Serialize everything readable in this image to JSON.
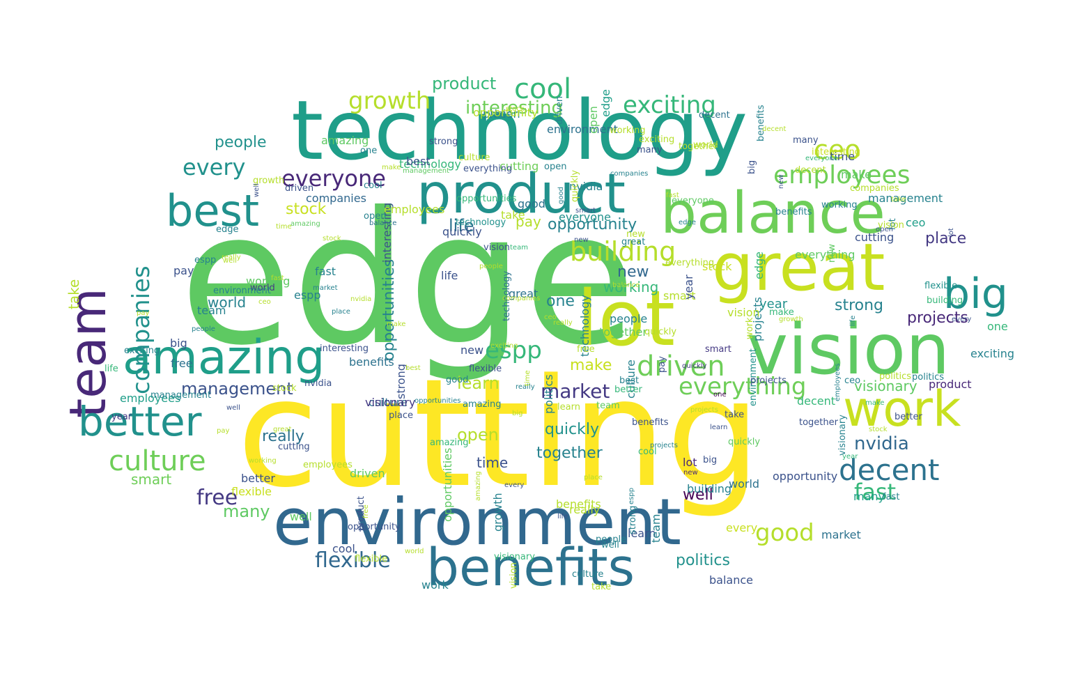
{
  "palette": {
    "yellow": "#fde725",
    "yellow_green": "#c8e020",
    "light_green": "#b5de2b",
    "green": "#6ece58",
    "mid_green": "#5ec962",
    "sea_green": "#35b779",
    "teal": "#1f9e89",
    "teal_dark": "#21918c",
    "blue_teal": "#26828e",
    "steel_blue": "#2c728e",
    "blue": "#31688e",
    "indigo": "#3b528b",
    "purple": "#443983",
    "dark_purple": "#482878",
    "deep_purple": "#440154",
    "background": "#ffffff"
  },
  "words": [
    {
      "text": "edge",
      "color": "#5ec962"
    },
    {
      "text": "cutting",
      "color": "#fde725"
    },
    {
      "text": "technology",
      "color": "#1f9e89"
    },
    {
      "text": "environment",
      "color": "#31688e"
    },
    {
      "text": "product",
      "color": "#21918c"
    },
    {
      "text": "great",
      "color": "#c8e020"
    },
    {
      "text": "vision",
      "color": "#5ec962"
    },
    {
      "text": "balance",
      "color": "#6ece58"
    },
    {
      "text": "lot",
      "color": "#c8e020"
    },
    {
      "text": "benefits",
      "color": "#2c728e"
    },
    {
      "text": "team",
      "color": "#482878"
    },
    {
      "text": "amazing",
      "color": "#1f9e89"
    },
    {
      "text": "work",
      "color": "#c8e020"
    },
    {
      "text": "better",
      "color": "#21918c"
    },
    {
      "text": "best",
      "color": "#21918c"
    },
    {
      "text": "big",
      "color": "#21918c"
    },
    {
      "text": "culture",
      "color": "#6ece58"
    },
    {
      "text": "decent",
      "color": "#2c728e"
    },
    {
      "text": "companies",
      "color": "#21918c"
    },
    {
      "text": "employees",
      "color": "#6ece58"
    },
    {
      "text": "driven",
      "color": "#6ece58"
    },
    {
      "text": "building",
      "color": "#b5de2b"
    },
    {
      "text": "everyone",
      "color": "#482878"
    },
    {
      "text": "everything",
      "color": "#6ece58"
    },
    {
      "text": "growth",
      "color": "#b5de2b"
    },
    {
      "text": "cool",
      "color": "#35b779"
    },
    {
      "text": "exciting",
      "color": "#35b779"
    },
    {
      "text": "espp",
      "color": "#35b779"
    },
    {
      "text": "fast",
      "color": "#35b779"
    },
    {
      "text": "good",
      "color": "#b5de2b"
    },
    {
      "text": "ceo",
      "color": "#b5de2b"
    },
    {
      "text": "every",
      "color": "#21918c"
    },
    {
      "text": "free",
      "color": "#443983"
    },
    {
      "text": "flexible",
      "color": "#31688e"
    },
    {
      "text": "management",
      "color": "#3b528b"
    },
    {
      "text": "market",
      "color": "#443983"
    },
    {
      "text": "interesting",
      "color": "#6ece58"
    },
    {
      "text": "opportunities",
      "color": "#26828e"
    },
    {
      "text": "nvidia",
      "color": "#31688e"
    },
    {
      "text": "politics",
      "color": "#21918c"
    },
    {
      "text": "product",
      "color": "#35b779"
    },
    {
      "text": "opportunity",
      "color": "#26828e"
    },
    {
      "text": "quickly",
      "color": "#21918c"
    },
    {
      "text": "learn",
      "color": "#b5de2b"
    },
    {
      "text": "together",
      "color": "#26828e"
    },
    {
      "text": "open",
      "color": "#b5de2b"
    },
    {
      "text": "visionary",
      "color": "#5ec962"
    },
    {
      "text": "projects",
      "color": "#482878"
    },
    {
      "text": "strong",
      "color": "#26828e"
    },
    {
      "text": "life",
      "color": "#2c728e"
    },
    {
      "text": "many",
      "color": "#5ec962"
    },
    {
      "text": "stock",
      "color": "#c8e020"
    },
    {
      "text": "people",
      "color": "#21918c"
    },
    {
      "text": "place",
      "color": "#443983"
    },
    {
      "text": "new",
      "color": "#31688e"
    },
    {
      "text": "year",
      "color": "#21918c"
    },
    {
      "text": "working",
      "color": "#35b779"
    },
    {
      "text": "really",
      "color": "#2c728e"
    },
    {
      "text": "smart",
      "color": "#6ece58"
    },
    {
      "text": "time",
      "color": "#3b528b"
    },
    {
      "text": "make",
      "color": "#c8e020"
    },
    {
      "text": "world",
      "color": "#26828e"
    },
    {
      "text": "well",
      "color": "#440154"
    },
    {
      "text": "pay",
      "color": "#b5de2b"
    },
    {
      "text": "take",
      "color": "#b5de2b"
    },
    {
      "text": "one",
      "color": "#26828e"
    },
    {
      "text": "edge",
      "color": "#35b779"
    },
    {
      "text": "cutting",
      "color": "#6ece58"
    },
    {
      "text": "environment",
      "color": "#2c728e"
    },
    {
      "text": "technology",
      "color": "#35b779"
    },
    {
      "text": "benefits",
      "color": "#b5de2b"
    },
    {
      "text": "great",
      "color": "#2c728e"
    },
    {
      "text": "employees",
      "color": "#1f9e89"
    },
    {
      "text": "opportunity",
      "color": "#3b528b"
    },
    {
      "text": "best",
      "color": "#3b528b"
    },
    {
      "text": "ceo",
      "color": "#1f9e89"
    },
    {
      "text": "cool",
      "color": "#3b528b"
    },
    {
      "text": "lot",
      "color": "#482878"
    },
    {
      "text": "work",
      "color": "#26828e"
    },
    {
      "text": "vision",
      "color": "#26828e"
    },
    {
      "text": "growth",
      "color": "#26828e"
    },
    {
      "text": "culture",
      "color": "#2c728e"
    },
    {
      "text": "decent",
      "color": "#35b779"
    },
    {
      "text": "amazing",
      "color": "#5ec962"
    },
    {
      "text": "building",
      "color": "#26828e"
    },
    {
      "text": "driven",
      "color": "#5ec962"
    },
    {
      "text": "team",
      "color": "#26828e"
    },
    {
      "text": "everything",
      "color": "#5ec962"
    },
    {
      "text": "companies",
      "color": "#31688e"
    },
    {
      "text": "big",
      "color": "#3b528b"
    },
    {
      "text": "better",
      "color": "#3b528b"
    },
    {
      "text": "fast",
      "color": "#26828e"
    },
    {
      "text": "flexible",
      "color": "#c8e020"
    },
    {
      "text": "many",
      "color": "#1f9e89"
    },
    {
      "text": "strong",
      "color": "#3b528b"
    },
    {
      "text": "projects",
      "color": "#26828e"
    },
    {
      "text": "world",
      "color": "#2c728e"
    },
    {
      "text": "market",
      "color": "#2c728e"
    },
    {
      "text": "management",
      "color": "#26828e"
    },
    {
      "text": "everyone",
      "color": "#21918c"
    },
    {
      "text": "politics",
      "color": "#26828e"
    },
    {
      "text": "interesting",
      "color": "#3b528b"
    },
    {
      "text": "free",
      "color": "#2c728e"
    },
    {
      "text": "stock",
      "color": "#c8e020"
    },
    {
      "text": "smart",
      "color": "#b5de2b"
    },
    {
      "text": "exciting",
      "color": "#26828e"
    },
    {
      "text": "together",
      "color": "#5ec962"
    },
    {
      "text": "balance",
      "color": "#3b528b"
    },
    {
      "text": "quickly",
      "color": "#3b528b"
    },
    {
      "text": "learn",
      "color": "#3b528b"
    },
    {
      "text": "open",
      "color": "#5ec962"
    },
    {
      "text": "new",
      "color": "#3b528b"
    },
    {
      "text": "year",
      "color": "#3b528b"
    },
    {
      "text": "people",
      "color": "#26828e"
    },
    {
      "text": "time",
      "color": "#3b528b"
    },
    {
      "text": "nvidia",
      "color": "#26828e"
    },
    {
      "text": "place",
      "color": "#26828e"
    },
    {
      "text": "really",
      "color": "#b5de2b"
    },
    {
      "text": "espp",
      "color": "#26828e"
    },
    {
      "text": "good",
      "color": "#2c728e"
    },
    {
      "text": "visionary",
      "color": "#443983"
    },
    {
      "text": "one",
      "color": "#35b779"
    },
    {
      "text": "make",
      "color": "#5ec962"
    },
    {
      "text": "life",
      "color": "#3b528b"
    },
    {
      "text": "pay",
      "color": "#3b528b"
    },
    {
      "text": "benefits",
      "color": "#2c728e"
    },
    {
      "text": "every",
      "color": "#c8e020"
    },
    {
      "text": "working",
      "color": "#5ec962"
    },
    {
      "text": "well",
      "color": "#5ec962"
    },
    {
      "text": "opportunities",
      "color": "#5ec962"
    },
    {
      "text": "take",
      "color": "#b5de2b"
    },
    {
      "text": "employees",
      "color": "#b5de2b"
    },
    {
      "text": "edge",
      "color": "#1f9e89"
    },
    {
      "text": "cutting",
      "color": "#3b528b"
    },
    {
      "text": "product",
      "color": "#482878"
    },
    {
      "text": "opportunity",
      "color": "#b5de2b"
    },
    {
      "text": "culture",
      "color": "#26828e"
    },
    {
      "text": "technology",
      "color": "#26828e"
    },
    {
      "text": "vision",
      "color": "#b5de2b"
    },
    {
      "text": "team",
      "color": "#26828e"
    },
    {
      "text": "year",
      "color": "#443983"
    },
    {
      "text": "one",
      "color": "#26828e"
    },
    {
      "text": "good",
      "color": "#26828e"
    },
    {
      "text": "decent",
      "color": "#2c728e"
    },
    {
      "text": "new",
      "color": "#5ec962"
    },
    {
      "text": "strong",
      "color": "#26828e"
    },
    {
      "text": "environment",
      "color": "#21918c"
    },
    {
      "text": "world",
      "color": "#443983"
    },
    {
      "text": "together",
      "color": "#3b528b"
    },
    {
      "text": "free",
      "color": "#b5de2b"
    },
    {
      "text": "take",
      "color": "#3b528b"
    },
    {
      "text": "working",
      "color": "#b5de2b"
    },
    {
      "text": "interesting",
      "color": "#c8e020"
    },
    {
      "text": "cool",
      "color": "#26828e"
    },
    {
      "text": "cutting",
      "color": "#3b528b"
    },
    {
      "text": "espp",
      "color": "#26828e"
    },
    {
      "text": "driven",
      "color": "#3b528b"
    },
    {
      "text": "many",
      "color": "#3b528b"
    },
    {
      "text": "life",
      "color": "#35b779"
    },
    {
      "text": "amazing",
      "color": "#26828e"
    },
    {
      "text": "working",
      "color": "#26828e"
    },
    {
      "text": "flexible",
      "color": "#21918c"
    },
    {
      "text": "culture",
      "color": "#26828e"
    },
    {
      "text": "lot",
      "color": "#26828e"
    },
    {
      "text": "everything",
      "color": "#3b528b"
    },
    {
      "text": "benefits",
      "color": "#26828e"
    },
    {
      "text": "visionary",
      "color": "#35b779"
    },
    {
      "text": "place",
      "color": "#3b528b"
    },
    {
      "text": "take",
      "color": "#b5de2b"
    },
    {
      "text": "opportunity",
      "color": "#3b528b"
    },
    {
      "text": "quickly",
      "color": "#5ec962"
    },
    {
      "text": "smart",
      "color": "#443983"
    },
    {
      "text": "politics",
      "color": "#26828e"
    },
    {
      "text": "cool",
      "color": "#35b779"
    },
    {
      "text": "vision",
      "color": "#3b528b"
    },
    {
      "text": "technology",
      "color": "#2c728e"
    },
    {
      "text": "edge",
      "color": "#26828e"
    },
    {
      "text": "product",
      "color": "#3b528b"
    },
    {
      "text": "environment",
      "color": "#26828e"
    },
    {
      "text": "strong",
      "color": "#3b528b"
    },
    {
      "text": "best",
      "color": "#26828e"
    },
    {
      "text": "people",
      "color": "#26828e"
    },
    {
      "text": "well",
      "color": "#26828e"
    },
    {
      "text": "new",
      "color": "#b5de2b"
    },
    {
      "text": "better",
      "color": "#3b528b"
    },
    {
      "text": "many",
      "color": "#3b528b"
    },
    {
      "text": "fast",
      "color": "#26828e"
    },
    {
      "text": "everyone",
      "color": "#5ec962"
    },
    {
      "text": "exciting",
      "color": "#b5de2b"
    },
    {
      "text": "everything",
      "color": "#b5de2b"
    },
    {
      "text": "benefits",
      "color": "#3b528b"
    },
    {
      "text": "quickly",
      "color": "#b5de2b"
    },
    {
      "text": "vision",
      "color": "#b5de2b"
    },
    {
      "text": "make",
      "color": "#35b779"
    },
    {
      "text": "ceo",
      "color": "#26828e"
    },
    {
      "text": "big",
      "color": "#3b528b"
    },
    {
      "text": "learn",
      "color": "#b5de2b"
    },
    {
      "text": "visionary",
      "color": "#26828e"
    },
    {
      "text": "together",
      "color": "#b5de2b"
    },
    {
      "text": "opportunities",
      "color": "#35b779"
    },
    {
      "text": "building",
      "color": "#35b779"
    },
    {
      "text": "culture",
      "color": "#b5de2b"
    },
    {
      "text": "team",
      "color": "#5ec962"
    },
    {
      "text": "open",
      "color": "#26828e"
    },
    {
      "text": "employees",
      "color": "#b5de2b"
    },
    {
      "text": "pay",
      "color": "#3b528b"
    },
    {
      "text": "amazing",
      "color": "#35b779"
    },
    {
      "text": "better",
      "color": "#35b779"
    },
    {
      "text": "benefits",
      "color": "#26828e"
    },
    {
      "text": "quickly",
      "color": "#b5de2b"
    },
    {
      "text": "vision",
      "color": "#b5de2b"
    },
    {
      "text": "work",
      "color": "#b5de2b"
    },
    {
      "text": "flexible",
      "color": "#3b528b"
    },
    {
      "text": "driven",
      "color": "#26828e"
    },
    {
      "text": "decent",
      "color": "#b5de2b"
    },
    {
      "text": "nvidia",
      "color": "#3b528b"
    },
    {
      "text": "companies",
      "color": "#b5de2b"
    },
    {
      "text": "exciting",
      "color": "#26828e"
    },
    {
      "text": "world",
      "color": "#b5de2b"
    },
    {
      "text": "technology",
      "color": "#21918c"
    },
    {
      "text": "flexible",
      "color": "#b5de2b"
    },
    {
      "text": "big",
      "color": "#3b528b"
    },
    {
      "text": "management",
      "color": "#26828e"
    },
    {
      "text": "projects",
      "color": "#3b528b"
    },
    {
      "text": "politics",
      "color": "#b5de2b"
    },
    {
      "text": "growth",
      "color": "#b5de2b"
    },
    {
      "text": "great",
      "color": "#26828e"
    },
    {
      "text": "stock",
      "color": "#b5de2b"
    },
    {
      "text": "open",
      "color": "#26828e"
    },
    {
      "text": "interesting",
      "color": "#3b528b"
    },
    {
      "text": "smart",
      "color": "#3b528b"
    },
    {
      "text": "amazing",
      "color": "#5ec962"
    },
    {
      "text": "market",
      "color": "#26828e"
    },
    {
      "text": "really",
      "color": "#b5de2b"
    },
    {
      "text": "projects",
      "color": "#26828e"
    },
    {
      "text": "free",
      "color": "#b5de2b"
    },
    {
      "text": "balance",
      "color": "#2c728e"
    },
    {
      "text": "opportunities",
      "color": "#26828e"
    },
    {
      "text": "employees",
      "color": "#26828e"
    },
    {
      "text": "year",
      "color": "#35b779"
    },
    {
      "text": "best",
      "color": "#b5de2b"
    },
    {
      "text": "every",
      "color": "#3b528b"
    },
    {
      "text": "espp",
      "color": "#26828e"
    },
    {
      "text": "time",
      "color": "#b5de2b"
    },
    {
      "text": "companies",
      "color": "#26828e"
    },
    {
      "text": "people",
      "color": "#b5de2b"
    },
    {
      "text": "stock",
      "color": "#b5de2b"
    },
    {
      "text": "growth",
      "color": "#b5de2b"
    },
    {
      "text": "quickly",
      "color": "#443983"
    },
    {
      "text": "everyone",
      "color": "#35b779"
    },
    {
      "text": "place",
      "color": "#26828e"
    },
    {
      "text": "new",
      "color": "#3b528b"
    },
    {
      "text": "management",
      "color": "#5ec962"
    },
    {
      "text": "really",
      "color": "#26828e"
    },
    {
      "text": "people",
      "color": "#26828e"
    },
    {
      "text": "companies",
      "color": "#b5de2b"
    },
    {
      "text": "every",
      "color": "#3b528b"
    },
    {
      "text": "nvidia",
      "color": "#b5de2b"
    },
    {
      "text": "fast",
      "color": "#b5de2b"
    },
    {
      "text": "new",
      "color": "#3b528b"
    },
    {
      "text": "world",
      "color": "#b5de2b"
    },
    {
      "text": "well",
      "color": "#b5de2b"
    },
    {
      "text": "life",
      "color": "#3b528b"
    },
    {
      "text": "make",
      "color": "#35b779"
    },
    {
      "text": "balance",
      "color": "#b5de2b"
    },
    {
      "text": "stock",
      "color": "#b5de2b"
    },
    {
      "text": "big",
      "color": "#b5de2b"
    },
    {
      "text": "pay",
      "color": "#b5de2b"
    },
    {
      "text": "ceo",
      "color": "#b5de2b"
    },
    {
      "text": "take",
      "color": "#b5de2b"
    },
    {
      "text": "decent",
      "color": "#b5de2b"
    },
    {
      "text": "working",
      "color": "#b5de2b"
    },
    {
      "text": "time",
      "color": "#b5de2b"
    },
    {
      "text": "learn",
      "color": "#3b528b"
    },
    {
      "text": "place",
      "color": "#b5de2b"
    },
    {
      "text": "good",
      "color": "#26828e"
    },
    {
      "text": "ceo",
      "color": "#b5de2b"
    },
    {
      "text": "open",
      "color": "#3b528b"
    },
    {
      "text": "one",
      "color": "#440154"
    },
    {
      "text": "life",
      "color": "#26828e"
    },
    {
      "text": "pay",
      "color": "#b5de2b"
    },
    {
      "text": "really",
      "color": "#b5de2b"
    },
    {
      "text": "well",
      "color": "#3b528b"
    },
    {
      "text": "amazing",
      "color": "#b5de2b"
    },
    {
      "text": "make",
      "color": "#b5de2b"
    },
    {
      "text": "lot",
      "color": "#3b528b"
    },
    {
      "text": "team",
      "color": "#35b779"
    },
    {
      "text": "new",
      "color": "#482878"
    },
    {
      "text": "great",
      "color": "#b5de2b"
    },
    {
      "text": "well",
      "color": "#3b528b"
    },
    {
      "text": "projects",
      "color": "#b5de2b"
    },
    {
      "text": "edge",
      "color": "#26828e"
    },
    {
      "text": "make",
      "color": "#b5de2b"
    },
    {
      "text": "exciting",
      "color": "#b5de2b"
    },
    {
      "text": "fast",
      "color": "#b5de2b"
    },
    {
      "text": "stock",
      "color": "#b5de2b"
    }
  ]
}
